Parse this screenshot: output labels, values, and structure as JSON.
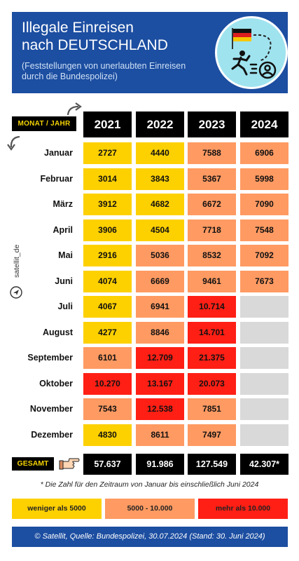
{
  "header": {
    "title": "Illegale Einreisen\nnach DEUTSCHLAND",
    "subtitle": "(Feststellungen von unerlaubten Einreisen\ndurch die Bundespolizei)"
  },
  "table": {
    "corner_label": "MONAT / JAHR",
    "total_label": "GESAMT"
  },
  "chart_data": {
    "type": "table",
    "columns": [
      "2021",
      "2022",
      "2023",
      "2024"
    ],
    "rows": [
      {
        "month": "Januar",
        "values": [
          "2727",
          "4440",
          "7588",
          "6906"
        ],
        "bands": [
          "lt5",
          "lt5",
          "mid",
          "mid"
        ]
      },
      {
        "month": "Februar",
        "values": [
          "3014",
          "3843",
          "5367",
          "5998"
        ],
        "bands": [
          "lt5",
          "lt5",
          "mid",
          "mid"
        ]
      },
      {
        "month": "März",
        "values": [
          "3912",
          "4682",
          "6672",
          "7090"
        ],
        "bands": [
          "lt5",
          "lt5",
          "mid",
          "mid"
        ]
      },
      {
        "month": "April",
        "values": [
          "3906",
          "4504",
          "7718",
          "7548"
        ],
        "bands": [
          "lt5",
          "lt5",
          "mid",
          "mid"
        ]
      },
      {
        "month": "Mai",
        "values": [
          "2916",
          "5036",
          "8532",
          "7092"
        ],
        "bands": [
          "lt5",
          "mid",
          "mid",
          "mid"
        ]
      },
      {
        "month": "Juni",
        "values": [
          "4074",
          "6669",
          "9461",
          "7673"
        ],
        "bands": [
          "lt5",
          "mid",
          "mid",
          "mid"
        ]
      },
      {
        "month": "Juli",
        "values": [
          "4067",
          "6941",
          "10.714",
          ""
        ],
        "bands": [
          "lt5",
          "mid",
          "gt10",
          "empty"
        ]
      },
      {
        "month": "August",
        "values": [
          "4277",
          "8846",
          "14.701",
          ""
        ],
        "bands": [
          "lt5",
          "mid",
          "gt10",
          "empty"
        ]
      },
      {
        "month": "September",
        "values": [
          "6101",
          "12.709",
          "21.375",
          ""
        ],
        "bands": [
          "mid",
          "gt10",
          "gt10",
          "empty"
        ]
      },
      {
        "month": "Oktober",
        "values": [
          "10.270",
          "13.167",
          "20.073",
          ""
        ],
        "bands": [
          "gt10",
          "gt10",
          "gt10",
          "empty"
        ]
      },
      {
        "month": "November",
        "values": [
          "7543",
          "12.538",
          "7851",
          ""
        ],
        "bands": [
          "mid",
          "gt10",
          "mid",
          "empty"
        ]
      },
      {
        "month": "Dezember",
        "values": [
          "4830",
          "8611",
          "7497",
          ""
        ],
        "bands": [
          "lt5",
          "mid",
          "mid",
          "empty"
        ]
      }
    ],
    "totals": [
      "57.637",
      "91.986",
      "127.549",
      "42.307*"
    ],
    "legend": [
      {
        "label": "weniger als 5000",
        "color": "#fdd000"
      },
      {
        "label": "5000 - 10.000",
        "color": "#ff9a62"
      },
      {
        "label": "mehr als 10.000",
        "color": "#ff1f15"
      }
    ]
  },
  "footnote": "* Die Zahl für den Zeitraum von Januar bis einschließlich Juni 2024",
  "source": "© Satellit, Quelle: Bundespolizei, 30.07.2024 (Stand: 30. Juni 2024)",
  "brand": "satellit_de",
  "colors": {
    "header_bg": "#1c4ea1",
    "yellow": "#fdd000",
    "orange": "#ff9a62",
    "red": "#ff1f15",
    "grey": "#d9d9d9"
  },
  "icons": [
    "flag-germany-icon",
    "running-person-icon",
    "user-circle-icon",
    "pointing-hand-icon",
    "curved-arrow-icon",
    "send-icon"
  ]
}
